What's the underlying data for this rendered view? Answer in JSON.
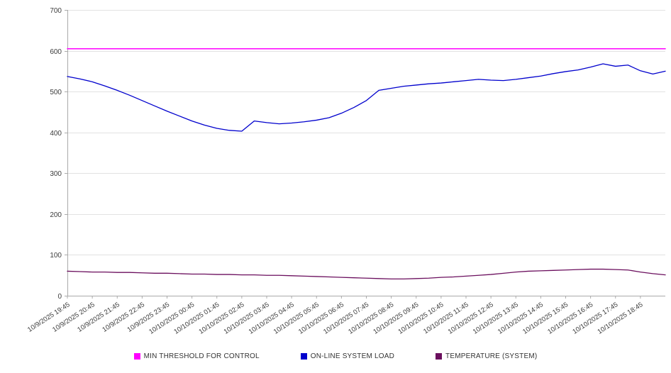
{
  "chart_data": {
    "type": "line",
    "title": "",
    "xlabel": "",
    "ylabel": "",
    "ylim": [
      0,
      700
    ],
    "ytick_step": 100,
    "grid": true,
    "legend_position": "bottom",
    "background": "#ffffff",
    "axis_text_color": "#3c3c3c",
    "grid_color": "#e2e2e2",
    "axis_line_color": "#aaaaaa",
    "points_per_tick": 2,
    "x_tick_labels": [
      "10/9/2025 19:45",
      "10/9/2025 20:45",
      "10/9/2025 21:45",
      "10/9/2025 22:45",
      "10/9/2025 23:45",
      "10/10/2025 00:45",
      "10/10/2025 01:45",
      "10/10/2025 02:45",
      "10/10/2025 03:45",
      "10/10/2025 04:45",
      "10/10/2025 05:45",
      "10/10/2025 06:45",
      "10/10/2025 07:45",
      "10/10/2025 08:45",
      "10/10/2025 09:45",
      "10/10/2025 10:45",
      "10/10/2025 11:45",
      "10/10/2025 12:45",
      "10/10/2025 13:45",
      "10/10/2025 14:45",
      "10/10/2025 15:45",
      "10/10/2025 16:45",
      "10/10/2025 17:45",
      "10/10/2025 18:45"
    ],
    "series": [
      {
        "name": "MIN THRESHOLD FOR CONTROL",
        "color": "#ff00ff",
        "constant": 605
      },
      {
        "name": "ON-LINE SYSTEM LOAD",
        "color": "#0000cd",
        "values": [
          537,
          531,
          524,
          514,
          503,
          491,
          478,
          465,
          452,
          440,
          428,
          418,
          410,
          405,
          403,
          428,
          424,
          421,
          423,
          426,
          430,
          436,
          447,
          461,
          478,
          503,
          508,
          513,
          516,
          519,
          521,
          524,
          527,
          530,
          528,
          527,
          530,
          534,
          538,
          544,
          549,
          553,
          560,
          568,
          562,
          565,
          551,
          543,
          550
        ]
      },
      {
        "name": "TEMPERATURE (SYSTEM)",
        "color": "#6b0f5e",
        "values": [
          60,
          59,
          58,
          58,
          57,
          57,
          56,
          55,
          55,
          54,
          53,
          53,
          52,
          52,
          51,
          51,
          50,
          50,
          49,
          48,
          47,
          46,
          45,
          44,
          43,
          42,
          41,
          41,
          42,
          43,
          45,
          46,
          48,
          50,
          52,
          55,
          58,
          60,
          61,
          62,
          63,
          64,
          65,
          65,
          64,
          63,
          58,
          54,
          51
        ]
      }
    ]
  }
}
